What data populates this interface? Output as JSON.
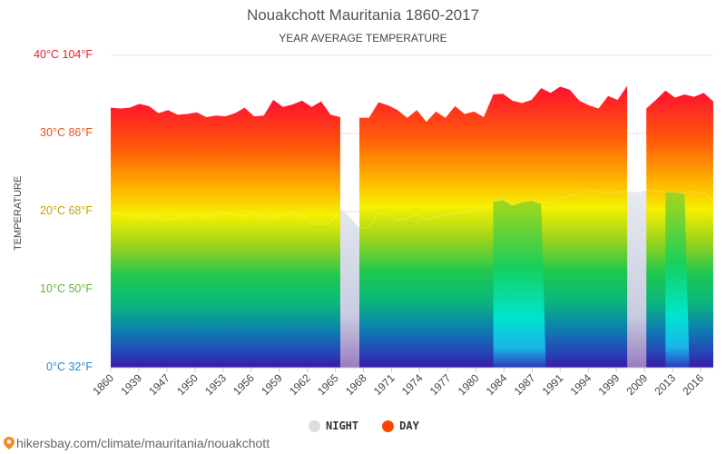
{
  "title": "Nouakchott Mauritania 1860-2017",
  "subtitle": "YEAR AVERAGE TEMPERATURE",
  "footer_url": "hikersbay.com/climate/mauritania/nouakchott",
  "colors": {
    "day_legend": "#ff4500",
    "night_legend": "#dddddd",
    "night_fill": "#d0d5e6",
    "title": "#555555"
  },
  "chart_data": {
    "type": "area",
    "title": "Nouakchott Mauritania 1860-2017",
    "subtitle": "YEAR AVERAGE TEMPERATURE",
    "ylabel": "TEMPERATURE",
    "xlabel": "",
    "ylim": [
      0,
      40
    ],
    "y_ticks": [
      {
        "value": 0,
        "label": "0°C 32°F",
        "color": "#1e90c8"
      },
      {
        "value": 10,
        "label": "10°C 50°F",
        "color": "#5cb82e"
      },
      {
        "value": 20,
        "label": "20°C 68°F",
        "color": "#c8a000"
      },
      {
        "value": 30,
        "label": "30°C 86°F",
        "color": "#e8501e"
      },
      {
        "value": 40,
        "label": "40°C 104°F",
        "color": "#e8202e"
      }
    ],
    "x_tick_labels": [
      "1860",
      "1939",
      "1947",
      "1950",
      "1953",
      "1956",
      "1959",
      "1962",
      "1965",
      "1968",
      "1971",
      "1974",
      "1977",
      "1980",
      "1984",
      "1987",
      "1991",
      "1994",
      "1999",
      "2009",
      "2013",
      "2016"
    ],
    "legend": [
      {
        "name": "NIGHT",
        "color": "#dddddd"
      },
      {
        "name": "DAY",
        "color": "#ff4500"
      }
    ],
    "legend_position": "bottom-center",
    "grid": true,
    "series": [
      {
        "name": "DAY",
        "points": [
          [
            0,
            33.3
          ],
          [
            1,
            33.2
          ],
          [
            2,
            33.3
          ],
          [
            3,
            33.8
          ],
          [
            4,
            33.5
          ],
          [
            5,
            32.6
          ],
          [
            6,
            33.0
          ],
          [
            7,
            32.4
          ],
          [
            8,
            32.5
          ],
          [
            9,
            32.7
          ],
          [
            10,
            32.1
          ],
          [
            11,
            32.3
          ],
          [
            12,
            32.2
          ],
          [
            13,
            32.6
          ],
          [
            14,
            33.3
          ],
          [
            15,
            32.2
          ],
          [
            16,
            32.3
          ],
          [
            17,
            34.3
          ],
          [
            18,
            33.4
          ],
          [
            19,
            33.7
          ],
          [
            20,
            34.2
          ],
          [
            21,
            33.4
          ],
          [
            22,
            34.1
          ],
          [
            23,
            32.4
          ],
          [
            24,
            32.1
          ],
          null,
          [
            26,
            32.0
          ],
          [
            27,
            32.0
          ],
          [
            28,
            34.0
          ],
          [
            29,
            33.6
          ],
          [
            30,
            33.0
          ],
          [
            31,
            32.0
          ],
          [
            32,
            33.0
          ],
          [
            33,
            31.5
          ],
          [
            34,
            32.8
          ],
          [
            35,
            32.0
          ],
          [
            36,
            33.5
          ],
          [
            37,
            32.5
          ],
          [
            38,
            32.8
          ],
          [
            39,
            32.1
          ],
          [
            40,
            35.0
          ],
          [
            41,
            35.1
          ],
          [
            42,
            34.2
          ],
          [
            43,
            33.9
          ],
          [
            44,
            34.3
          ],
          [
            45,
            35.8
          ],
          [
            46,
            35.2
          ],
          [
            47,
            36.0
          ],
          [
            48,
            35.6
          ],
          [
            49,
            34.2
          ],
          [
            50,
            33.6
          ],
          [
            51,
            33.2
          ],
          [
            52,
            34.8
          ],
          [
            53,
            34.3
          ],
          [
            54,
            36.1
          ],
          null,
          [
            56,
            33.2
          ],
          [
            57,
            34.3
          ],
          [
            58,
            35.5
          ],
          [
            59,
            34.6
          ],
          [
            60,
            35.0
          ],
          [
            61,
            34.7
          ],
          [
            62,
            35.2
          ],
          [
            63,
            34.1
          ]
        ]
      },
      {
        "name": "NIGHT",
        "points": [
          [
            0,
            19.9
          ],
          [
            1,
            19.7
          ],
          [
            2,
            19.5
          ],
          [
            3,
            19.0
          ],
          [
            4,
            19.8
          ],
          [
            5,
            19.1
          ],
          [
            6,
            19.0
          ],
          [
            7,
            19.2
          ],
          [
            8,
            19.5
          ],
          [
            9,
            19.8
          ],
          [
            10,
            19.2
          ],
          [
            11,
            19.9
          ],
          [
            12,
            19.8
          ],
          [
            13,
            19.7
          ],
          [
            14,
            19.4
          ],
          [
            15,
            19.9
          ],
          [
            16,
            19.0
          ],
          [
            17,
            19.3
          ],
          [
            18,
            19.6
          ],
          [
            19,
            19.9
          ],
          [
            20,
            19.4
          ],
          [
            21,
            18.5
          ],
          [
            22,
            18.3
          ],
          [
            23,
            18.6
          ],
          [
            24,
            20.5
          ],
          [
            25,
            19.3
          ],
          [
            26,
            17.9
          ],
          [
            27,
            18.0
          ],
          [
            28,
            19.8
          ],
          [
            29,
            19.6
          ],
          [
            30,
            18.9
          ],
          [
            31,
            19.2
          ],
          [
            32,
            19.6
          ],
          [
            33,
            19.0
          ],
          [
            34,
            19.3
          ],
          [
            35,
            19.6
          ],
          [
            36,
            19.7
          ],
          [
            37,
            20.0
          ],
          [
            38,
            20.2
          ],
          [
            39,
            19.8
          ],
          [
            40,
            21.3
          ],
          [
            41,
            21.5
          ],
          [
            42,
            20.8
          ],
          [
            43,
            21.2
          ],
          [
            44,
            21.4
          ],
          [
            45,
            21.0
          ],
          [
            46,
            21.2
          ],
          [
            47,
            21.7
          ],
          [
            48,
            22.0
          ],
          [
            49,
            22.3
          ],
          [
            50,
            22.8
          ],
          [
            51,
            22.6
          ],
          [
            52,
            22.4
          ],
          [
            53,
            22.5
          ],
          [
            54,
            22.6
          ],
          [
            55,
            22.5
          ],
          [
            56,
            22.7
          ],
          [
            57,
            22.6
          ],
          [
            58,
            22.5
          ],
          [
            59,
            22.5
          ],
          [
            60,
            22.3
          ],
          [
            61,
            22.6
          ],
          [
            62,
            22.4
          ],
          [
            63,
            21.5
          ]
        ]
      }
    ],
    "gaps_without_day_data": [
      [
        24,
        26
      ],
      [
        54,
        56
      ]
    ]
  }
}
